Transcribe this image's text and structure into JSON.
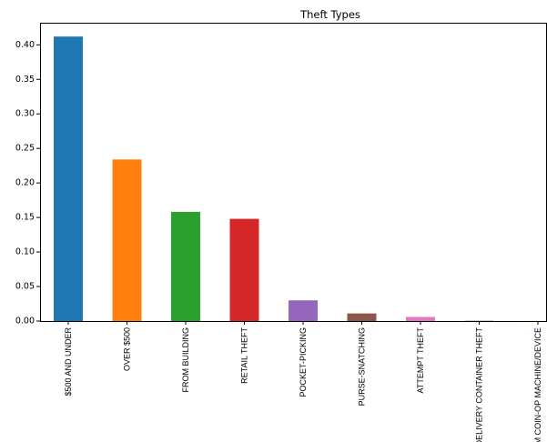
{
  "chart_data": {
    "type": "bar",
    "title": "Theft Types",
    "xlabel": "",
    "ylabel": "",
    "categories": [
      "$500 AND UNDER",
      "OVER $500",
      "FROM BUILDING",
      "RETAIL THEFT",
      "POCKET-PICKING",
      "PURSE-SNATCHING",
      "ATTEMPT THEFT",
      "DELIVERY CONTAINER THEFT",
      "FROM COIN-OP MACHINE/DEVICE"
    ],
    "values": [
      0.412,
      0.234,
      0.158,
      0.148,
      0.03,
      0.011,
      0.006,
      0.0005,
      0.0002
    ],
    "colors": [
      "#1f77b4",
      "#ff7f0e",
      "#2ca02c",
      "#d62728",
      "#9467bd",
      "#8c564b",
      "#e377c2",
      "#7f7f7f",
      "#bcbd22"
    ],
    "yticks": [
      0.0,
      0.05,
      0.1,
      0.15,
      0.2,
      0.25,
      0.3,
      0.35,
      0.4
    ],
    "ytick_labels": [
      "0.00",
      "0.05",
      "0.10",
      "0.15",
      "0.20",
      "0.25",
      "0.30",
      "0.35",
      "0.40"
    ],
    "ylim": [
      0,
      0.432
    ],
    "grid": false,
    "legend": false
  }
}
